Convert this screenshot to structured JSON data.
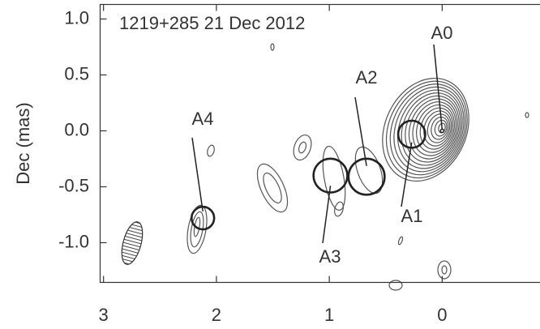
{
  "chart_data": {
    "type": "component-map",
    "title": "1219+285  21 Dec 2012",
    "y_label": "Dec (mas)",
    "xlim": [
      3.03,
      -0.87
    ],
    "ylim": [
      -1.355,
      1.13
    ],
    "xticks": [
      3,
      2,
      1,
      0
    ],
    "yticks": [
      {
        "value": 1,
        "label": "1.0"
      },
      0.5,
      {
        "value": 0,
        "label": "0.0"
      },
      -0.5,
      {
        "value": -1,
        "label": "-1.0"
      }
    ],
    "components": [
      {
        "name": "A0",
        "x": 0.0,
        "y": 0.0,
        "size": 0.03
      },
      {
        "name": "A1",
        "x": 0.27,
        "y": -0.03,
        "size": 0.24
      },
      {
        "name": "A2",
        "x": 0.67,
        "y": -0.41,
        "size": 0.32
      },
      {
        "name": "A3",
        "x": 0.99,
        "y": -0.4,
        "size": 0.3
      },
      {
        "name": "A4",
        "x": 2.12,
        "y": -0.78,
        "size": 0.2
      }
    ]
  }
}
